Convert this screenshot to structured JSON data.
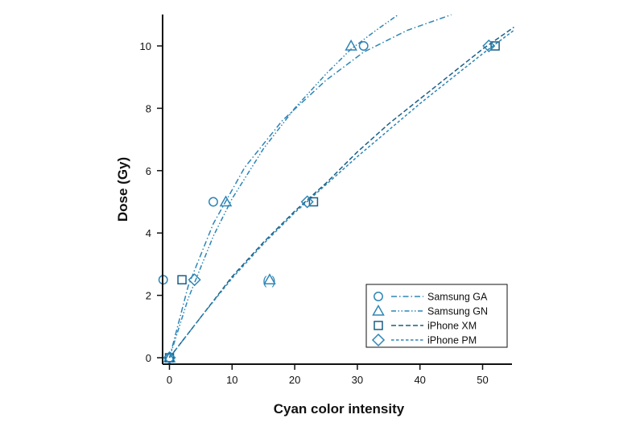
{
  "chart_data": {
    "type": "scatter",
    "title": "",
    "xlabel": "Cyan color intensity",
    "ylabel": "Dose (Gy)",
    "xlim": [
      -1,
      55
    ],
    "ylim": [
      0,
      11
    ],
    "xticks": [
      0,
      10,
      20,
      30,
      40,
      50
    ],
    "yticks": [
      0,
      2,
      4,
      6,
      8,
      10
    ],
    "grid": false,
    "legend_position": "bottom-right",
    "series": [
      {
        "name": "Samsung GA",
        "marker": "circle",
        "line_style": "dash-dot",
        "color": "#2e86b5",
        "points": [
          [
            0,
            0
          ],
          [
            -1,
            2.5
          ],
          [
            7,
            5
          ],
          [
            31,
            10
          ]
        ],
        "fit": [
          [
            0,
            0
          ],
          [
            3,
            2.3
          ],
          [
            7,
            4.3
          ],
          [
            12,
            6.1
          ],
          [
            18,
            7.6
          ],
          [
            25,
            8.9
          ],
          [
            31,
            9.8
          ],
          [
            38,
            10.5
          ],
          [
            45,
            11
          ]
        ]
      },
      {
        "name": "Samsung GN",
        "marker": "triangle",
        "line_style": "dash-dot-dot",
        "color": "#2e86b5",
        "points": [
          [
            0,
            0
          ],
          [
            16,
            2.5
          ],
          [
            9,
            5
          ],
          [
            29,
            10
          ]
        ],
        "outlier_label": "(Δ)",
        "outlier_point": [
          16,
          2.5
        ],
        "fit": [
          [
            0,
            0
          ],
          [
            3,
            1.9
          ],
          [
            7,
            3.9
          ],
          [
            10,
            5.1
          ],
          [
            15,
            6.7
          ],
          [
            20,
            8.0
          ],
          [
            25,
            9.1
          ],
          [
            29,
            9.9
          ],
          [
            33,
            10.5
          ],
          [
            36.5,
            11
          ]
        ]
      },
      {
        "name": "iPhone XM",
        "marker": "square",
        "line_style": "long-dash",
        "color": "#1a5e86",
        "points": [
          [
            0,
            0
          ],
          [
            2,
            2.5
          ],
          [
            23,
            5
          ],
          [
            52,
            10
          ]
        ],
        "fit": [
          [
            0,
            0
          ],
          [
            5,
            1.3
          ],
          [
            10,
            2.6
          ],
          [
            15,
            3.7
          ],
          [
            20,
            4.7
          ],
          [
            25,
            5.6
          ],
          [
            30,
            6.6
          ],
          [
            35,
            7.5
          ],
          [
            40,
            8.3
          ],
          [
            45,
            9.1
          ],
          [
            50,
            9.9
          ],
          [
            55,
            10.6
          ]
        ]
      },
      {
        "name": "iPhone PM",
        "marker": "diamond",
        "line_style": "short-dash",
        "color": "#2e86b5",
        "points": [
          [
            0,
            0
          ],
          [
            4,
            2.5
          ],
          [
            22,
            5
          ],
          [
            51,
            10
          ]
        ],
        "fit": [
          [
            0,
            0
          ],
          [
            5,
            1.3
          ],
          [
            10,
            2.55
          ],
          [
            15,
            3.65
          ],
          [
            20,
            4.65
          ],
          [
            25,
            5.55
          ],
          [
            30,
            6.45
          ],
          [
            35,
            7.3
          ],
          [
            40,
            8.15
          ],
          [
            45,
            8.95
          ],
          [
            50,
            9.75
          ],
          [
            55,
            10.5
          ]
        ]
      }
    ]
  }
}
